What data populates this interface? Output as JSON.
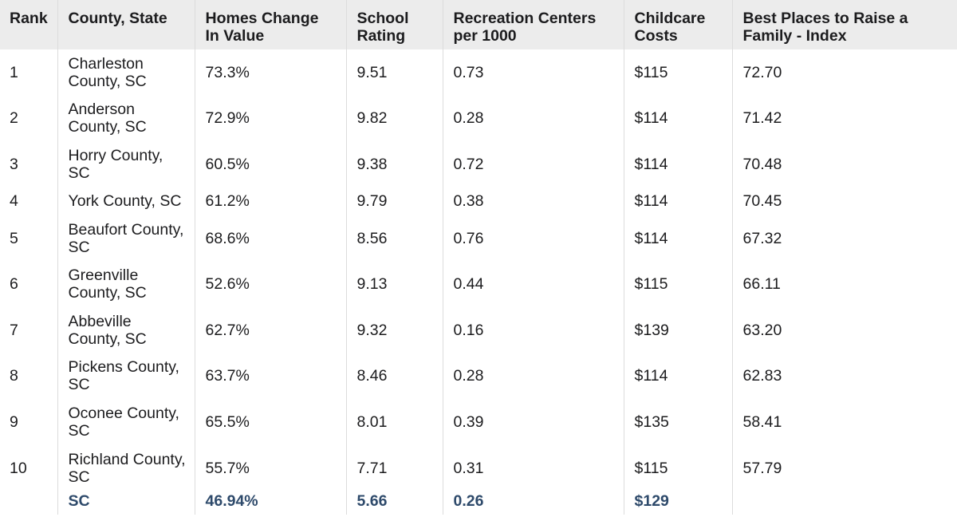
{
  "headers": {
    "rank": "Rank",
    "county": "County, State",
    "homes": "Homes Change In Value",
    "school": "School Rating",
    "rec": "Recreation Centers per 1000",
    "child": "Childcare Costs",
    "index": "Best Places to Raise a Family - Index"
  },
  "rows": [
    {
      "rank": "1",
      "county": "Charleston County, SC",
      "homes": "73.3%",
      "school": "9.51",
      "rec": "0.73",
      "child": "$115",
      "index": "72.70"
    },
    {
      "rank": "2",
      "county": "Anderson County, SC",
      "homes": "72.9%",
      "school": "9.82",
      "rec": "0.28",
      "child": "$114",
      "index": "71.42"
    },
    {
      "rank": "3",
      "county": "Horry County, SC",
      "homes": "60.5%",
      "school": "9.38",
      "rec": "0.72",
      "child": "$114",
      "index": "70.48"
    },
    {
      "rank": "4",
      "county": "York County, SC",
      "homes": "61.2%",
      "school": "9.79",
      "rec": "0.38",
      "child": "$114",
      "index": "70.45"
    },
    {
      "rank": "5",
      "county": "Beaufort County, SC",
      "homes": "68.6%",
      "school": "8.56",
      "rec": "0.76",
      "child": "$114",
      "index": "67.32"
    },
    {
      "rank": "6",
      "county": "Greenville County, SC",
      "homes": "52.6%",
      "school": "9.13",
      "rec": "0.44",
      "child": "$115",
      "index": "66.11"
    },
    {
      "rank": "7",
      "county": "Abbeville County, SC",
      "homes": "62.7%",
      "school": "9.32",
      "rec": "0.16",
      "child": "$139",
      "index": "63.20"
    },
    {
      "rank": "8",
      "county": "Pickens County, SC",
      "homes": "63.7%",
      "school": "8.46",
      "rec": "0.28",
      "child": "$114",
      "index": "62.83"
    },
    {
      "rank": "9",
      "county": "Oconee County, SC",
      "homes": "65.5%",
      "school": "8.01",
      "rec": "0.39",
      "child": "$135",
      "index": "58.41"
    },
    {
      "rank": "10",
      "county": "Richland County, SC",
      "homes": "55.7%",
      "school": "7.71",
      "rec": "0.31",
      "child": "$115",
      "index": "57.79"
    }
  ],
  "summary": {
    "rank": "",
    "county": "SC",
    "homes": "46.94%",
    "school": "5.66",
    "rec": "0.26",
    "child": "$129",
    "index": ""
  },
  "colors": {
    "header_bg": "#ececec",
    "summary_text": "#2e4a6b",
    "grid_line": "#dcdcdc"
  }
}
